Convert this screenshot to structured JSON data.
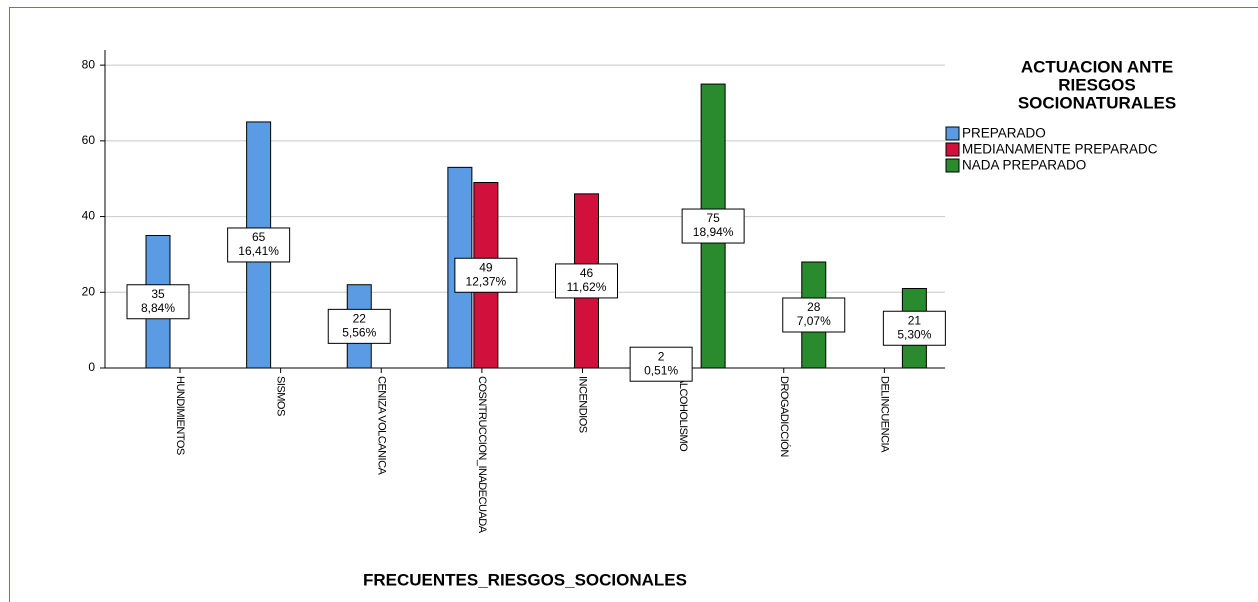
{
  "chart_data": {
    "type": "bar",
    "x_label": "FRECUENTES_RIESGOS_SOCIONALES",
    "legend_title": [
      "ACTUACION ANTE",
      "RIESGOS",
      "SOCIONATURALES"
    ],
    "legend_position": "right",
    "categories": [
      "HUNDIMIENTOS",
      "SISMOS",
      "CENIZA VOLCANICA",
      "COSNTRUCCION_INADECUADA",
      "INCENDIOS",
      "ALCOHOLISMO",
      "DROGADICCIÓN",
      "DELINCUENCIA"
    ],
    "series": [
      {
        "name": "PREPARADO",
        "color": "#5b9be3",
        "values": [
          35,
          65,
          22,
          53,
          null,
          2,
          null,
          null
        ],
        "percent_labels": [
          "8,84%",
          "16,41%",
          "5,56%",
          null,
          null,
          "0,51%",
          null,
          null
        ]
      },
      {
        "name": "MEDIANAMENTE PREPARADC",
        "color": "#d2103c",
        "values": [
          null,
          null,
          null,
          49,
          46,
          null,
          null,
          null
        ],
        "percent_labels": [
          null,
          null,
          null,
          "12,37%",
          "11,62%",
          null,
          null,
          null
        ]
      },
      {
        "name": "NADA PREPARADO",
        "color": "#2a8a2e",
        "values": [
          null,
          null,
          null,
          null,
          null,
          75,
          28,
          21
        ],
        "percent_labels": [
          null,
          null,
          null,
          null,
          null,
          "18,94%",
          "7,07%",
          "5,30%"
        ]
      }
    ],
    "ylim": [
      0,
      84
    ],
    "yticks": [
      0,
      20,
      40,
      60,
      80
    ],
    "grid": true
  }
}
